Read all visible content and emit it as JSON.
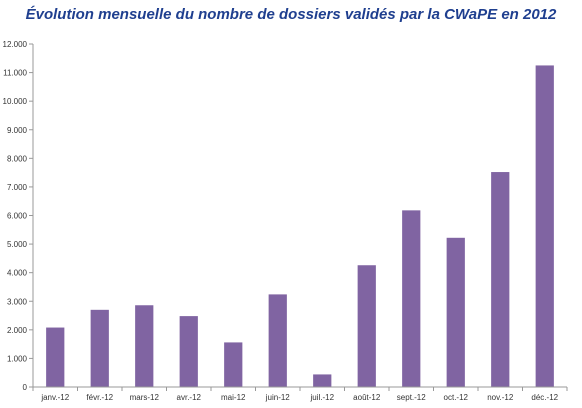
{
  "chart_data": {
    "type": "bar",
    "title": "Évolution mensuelle du nombre de dossiers validés par la CWaPE en 2012",
    "xlabel": "",
    "ylabel": "",
    "categories": [
      "janv.-12",
      "févr.-12",
      "mars-12",
      "avr.-12",
      "mai-12",
      "juin-12",
      "juil.-12",
      "août-12",
      "sept.-12",
      "oct.-12",
      "nov.-12",
      "déc.-12"
    ],
    "values": [
      2080,
      2700,
      2860,
      2480,
      1560,
      3240,
      440,
      4260,
      6180,
      5220,
      7520,
      11250
    ],
    "ylim": [
      0,
      12000
    ],
    "yticks": [
      0,
      1000,
      2000,
      3000,
      4000,
      5000,
      6000,
      7000,
      8000,
      9000,
      10000,
      11000,
      12000
    ],
    "ytick_labels": [
      "0",
      "1.000",
      "2.000",
      "3.000",
      "4.000",
      "5.000",
      "6.000",
      "7.000",
      "8.000",
      "9.000",
      "10.000",
      "11.000",
      "12.000"
    ],
    "grid": false,
    "legend": "none",
    "bar_color": "#8064a2",
    "title_color": "#1f3f8f"
  }
}
